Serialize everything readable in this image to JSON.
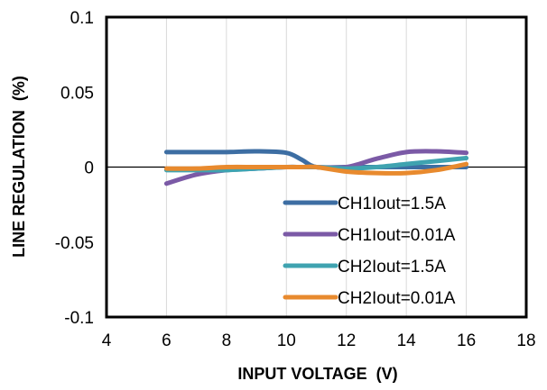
{
  "chart_data": {
    "type": "line",
    "title": "",
    "xlabel": "INPUT VOLTAGE  (V)",
    "ylabel": "LINE REGULATION  (%)",
    "xlim": [
      4,
      18
    ],
    "ylim": [
      -0.1,
      0.1
    ],
    "xticks": [
      4,
      6,
      8,
      10,
      12,
      14,
      16,
      18
    ],
    "yticks": [
      -0.1,
      -0.05,
      0,
      0.05,
      0.1
    ],
    "xtick_labels": [
      "4",
      "6",
      "8",
      "10",
      "12",
      "14",
      "16",
      "18"
    ],
    "ytick_labels": [
      "-0.1",
      "-0.05",
      "0",
      "0.05",
      "0.1"
    ],
    "grid": "vertical",
    "legend": "inside-lower-right",
    "x": [
      6,
      7,
      8,
      9,
      10,
      10.5,
      11,
      12,
      13,
      14,
      15,
      16
    ],
    "series": [
      {
        "name": "CH1Iout=1.5A",
        "color": "#3d6ea3",
        "values": [
          0.01,
          0.01,
          0.01,
          0.0105,
          0.0095,
          0.005,
          0.0,
          0.0,
          0.0,
          0.0,
          0.0,
          0.0
        ]
      },
      {
        "name": "CH1Iout=0.01A",
        "color": "#7b5aa6",
        "values": [
          -0.011,
          -0.005,
          -0.002,
          -0.001,
          0.0,
          0.0,
          0.0,
          0.0,
          0.0055,
          0.01,
          0.0105,
          0.0095
        ]
      },
      {
        "name": "CH2Iout=1.5A",
        "color": "#3fa3b0",
        "values": [
          -0.002,
          -0.002,
          -0.002,
          -0.001,
          0.0,
          0.0,
          0.0,
          -0.001,
          0.0,
          0.002,
          0.004,
          0.006
        ]
      },
      {
        "name": "CH2Iout=0.01A",
        "color": "#e88a2e",
        "values": [
          -0.001,
          -0.001,
          0.0,
          0.0,
          0.0,
          0.0,
          0.0,
          -0.003,
          -0.004,
          -0.004,
          -0.002,
          0.002
        ]
      }
    ]
  }
}
